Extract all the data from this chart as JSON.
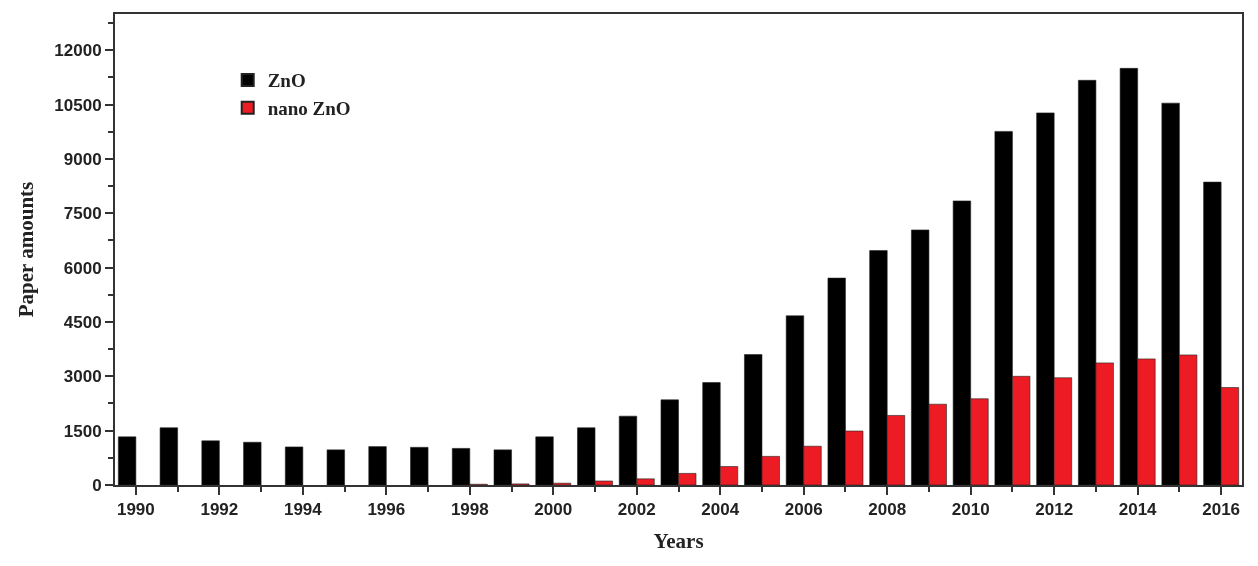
{
  "chart_data": {
    "type": "bar",
    "xlabel": "Years",
    "ylabel": "Paper amounts",
    "x": [
      1990,
      1991,
      1992,
      1993,
      1994,
      1995,
      1996,
      1997,
      1998,
      1999,
      2000,
      2001,
      2002,
      2003,
      2004,
      2005,
      2006,
      2007,
      2008,
      2009,
      2010,
      2011,
      2012,
      2013,
      2014,
      2015,
      2016
    ],
    "series": [
      {
        "name": "ZnO",
        "color": "#000000",
        "values": [
          1330,
          1580,
          1220,
          1180,
          1050,
          970,
          1060,
          1040,
          1010,
          970,
          1330,
          1580,
          1900,
          2350,
          2830,
          3600,
          4670,
          5710,
          6470,
          7040,
          7840,
          9760,
          10270,
          11170,
          11500,
          10540,
          8360
        ]
      },
      {
        "name": "nano ZnO",
        "color": "#ed1c24",
        "values": [
          null,
          null,
          null,
          null,
          null,
          null,
          null,
          null,
          20,
          30,
          50,
          110,
          170,
          320,
          510,
          790,
          1070,
          1490,
          1920,
          2230,
          2380,
          3000,
          2960,
          3370,
          3480,
          3590,
          2690
        ]
      }
    ],
    "xlim": [
      1989.5,
      2016.5
    ],
    "xticks": [
      1990,
      1992,
      1994,
      1996,
      1998,
      2000,
      2002,
      2004,
      2006,
      2008,
      2010,
      2012,
      2014,
      2016
    ],
    "ylim": [
      0,
      13000
    ],
    "yticks": [
      0,
      1500,
      3000,
      4500,
      6000,
      7500,
      9000,
      10500,
      12000
    ],
    "legend": "top left"
  }
}
